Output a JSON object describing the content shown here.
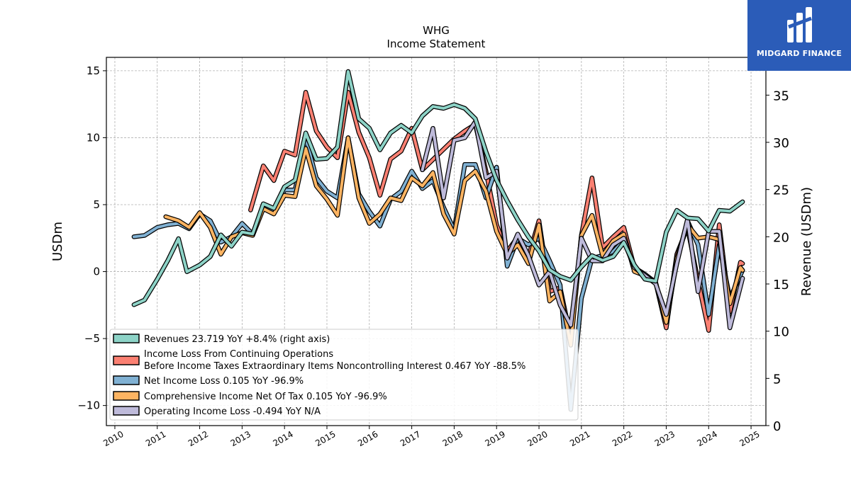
{
  "brand": {
    "name": "MIDGARD FINANCE",
    "bg": "#2b5cb8"
  },
  "chart_data": {
    "type": "line",
    "title": "WHG",
    "subtitle": "Income Statement",
    "ylabel": "USDm",
    "y2label": "Revenue (USDm)",
    "ylim": [
      -11.5,
      16
    ],
    "y2lim": [
      0,
      39
    ],
    "xlim": [
      2009.8,
      2025.35
    ],
    "yticks": [
      -10,
      -5,
      0,
      5,
      10,
      15
    ],
    "y2ticks": [
      0,
      5,
      10,
      15,
      20,
      25,
      30,
      35
    ],
    "xticks": [
      "2010",
      "2011",
      "2012",
      "2013",
      "2014",
      "2015",
      "2016",
      "2017",
      "2018",
      "2019",
      "2020",
      "2021",
      "2022",
      "2023",
      "2024",
      "2025"
    ],
    "grid": true,
    "legend_position": "lower-left",
    "series": [
      {
        "name": "Revenues  23.719 YoY +8.4% (right axis)",
        "axis": "right",
        "color": "#8dd3c7",
        "points": [
          [
            2010.45,
            12.8
          ],
          [
            2010.7,
            13.3
          ],
          [
            2011.0,
            15.5
          ],
          [
            2011.25,
            17.5
          ],
          [
            2011.5,
            19.8
          ],
          [
            2011.7,
            16.3
          ],
          [
            2012.0,
            17.0
          ],
          [
            2012.25,
            17.9
          ],
          [
            2012.5,
            20.2
          ],
          [
            2012.75,
            19.0
          ],
          [
            2013.0,
            20.5
          ],
          [
            2013.25,
            20.3
          ],
          [
            2013.5,
            23.5
          ],
          [
            2013.75,
            23.0
          ],
          [
            2014.0,
            25.3
          ],
          [
            2014.25,
            26.0
          ],
          [
            2014.5,
            31.0
          ],
          [
            2014.75,
            28.2
          ],
          [
            2015.0,
            28.3
          ],
          [
            2015.25,
            29.5
          ],
          [
            2015.5,
            37.5
          ],
          [
            2015.75,
            32.5
          ],
          [
            2016.0,
            31.5
          ],
          [
            2016.25,
            29.2
          ],
          [
            2016.5,
            31.0
          ],
          [
            2016.75,
            31.8
          ],
          [
            2017.0,
            31.0
          ],
          [
            2017.25,
            32.8
          ],
          [
            2017.5,
            33.8
          ],
          [
            2017.75,
            33.6
          ],
          [
            2018.0,
            34.0
          ],
          [
            2018.25,
            33.6
          ],
          [
            2018.5,
            32.5
          ],
          [
            2018.75,
            29.0
          ],
          [
            2019.0,
            26.0
          ],
          [
            2019.25,
            23.8
          ],
          [
            2019.5,
            21.8
          ],
          [
            2019.75,
            20.0
          ],
          [
            2020.0,
            18.5
          ],
          [
            2020.25,
            16.5
          ],
          [
            2020.5,
            15.8
          ],
          [
            2020.75,
            15.4
          ],
          [
            2021.0,
            16.8
          ],
          [
            2021.25,
            18.0
          ],
          [
            2021.5,
            17.5
          ],
          [
            2021.75,
            17.9
          ],
          [
            2022.0,
            19.4
          ],
          [
            2022.25,
            17.0
          ],
          [
            2022.5,
            15.5
          ],
          [
            2022.75,
            15.3
          ],
          [
            2023.0,
            20.5
          ],
          [
            2023.25,
            22.8
          ],
          [
            2023.5,
            22.0
          ],
          [
            2023.75,
            21.9
          ],
          [
            2024.0,
            20.6
          ],
          [
            2024.25,
            22.8
          ],
          [
            2024.5,
            22.7
          ],
          [
            2024.8,
            23.7
          ]
        ]
      },
      {
        "name": "Income Loss From Continuing Operations",
        "name_line2": "Before Income Taxes Extraordinary Items Noncontrolling Interest  0.467 YoY -88.5%",
        "axis": "left",
        "color": "#fb8072",
        "points": [
          [
            2013.2,
            4.6
          ],
          [
            2013.5,
            7.9
          ],
          [
            2013.75,
            6.8
          ],
          [
            2014.0,
            9.0
          ],
          [
            2014.25,
            8.7
          ],
          [
            2014.5,
            13.4
          ],
          [
            2014.75,
            10.5
          ],
          [
            2015.0,
            9.3
          ],
          [
            2015.25,
            8.5
          ],
          [
            2015.5,
            13.4
          ],
          [
            2015.75,
            10.4
          ],
          [
            2016.0,
            8.5
          ],
          [
            2016.25,
            5.7
          ],
          [
            2016.5,
            8.4
          ],
          [
            2016.75,
            9.0
          ],
          [
            2017.0,
            10.7
          ],
          [
            2017.25,
            7.6
          ],
          [
            2018.0,
            9.9
          ],
          [
            2018.25,
            10.5
          ],
          [
            2018.5,
            11.0
          ],
          [
            2018.75,
            7.5
          ],
          [
            2019.0,
            3.5
          ],
          [
            2019.25,
            1.5
          ],
          [
            2019.5,
            2.6
          ],
          [
            2019.75,
            1.1
          ],
          [
            2020.0,
            3.8
          ],
          [
            2020.25,
            -1.5
          ],
          [
            2020.5,
            -1.2
          ],
          [
            2020.75,
            -5.0
          ],
          [
            2021.0,
            2.7
          ],
          [
            2021.25,
            7.0
          ],
          [
            2021.5,
            1.8
          ],
          [
            2021.75,
            2.6
          ],
          [
            2022.0,
            3.3
          ],
          [
            2022.25,
            0.3
          ],
          [
            2022.5,
            -0.3
          ],
          [
            2022.75,
            -0.8
          ],
          [
            2023.0,
            -4.2
          ],
          [
            2023.25,
            1.3
          ],
          [
            2023.5,
            3.3
          ],
          [
            2023.75,
            -0.7
          ],
          [
            2024.0,
            -4.4
          ],
          [
            2024.25,
            3.5
          ],
          [
            2024.5,
            -3.0
          ],
          [
            2024.75,
            0.7
          ],
          [
            2024.8,
            0.6
          ]
        ]
      },
      {
        "name": "Net Income Loss  0.105 YoY -96.9%",
        "axis": "left",
        "color": "#80b1d3",
        "points": [
          [
            2010.45,
            2.6
          ],
          [
            2010.7,
            2.7
          ],
          [
            2011.0,
            3.3
          ],
          [
            2011.25,
            3.5
          ],
          [
            2011.5,
            3.6
          ],
          [
            2011.75,
            3.2
          ],
          [
            2012.0,
            4.3
          ],
          [
            2012.25,
            3.8
          ],
          [
            2012.5,
            2.2
          ],
          [
            2012.75,
            2.6
          ],
          [
            2013.0,
            3.6
          ],
          [
            2013.25,
            2.8
          ],
          [
            2013.5,
            4.8
          ],
          [
            2013.75,
            4.5
          ],
          [
            2014.0,
            6.1
          ],
          [
            2014.25,
            6.1
          ],
          [
            2014.5,
            10.0
          ],
          [
            2014.75,
            7.0
          ],
          [
            2015.0,
            6.0
          ],
          [
            2015.25,
            5.5
          ],
          [
            2015.5,
            10.0
          ],
          [
            2015.75,
            5.8
          ],
          [
            2016.0,
            4.5
          ],
          [
            2016.25,
            3.4
          ],
          [
            2016.5,
            5.4
          ],
          [
            2016.75,
            6.0
          ],
          [
            2017.0,
            7.5
          ],
          [
            2017.25,
            6.2
          ],
          [
            2017.5,
            6.8
          ],
          [
            2017.75,
            4.8
          ],
          [
            2018.0,
            3.1
          ],
          [
            2018.25,
            8.0
          ],
          [
            2018.5,
            8.0
          ],
          [
            2018.75,
            5.5
          ],
          [
            2019.0,
            7.8
          ],
          [
            2019.25,
            0.4
          ],
          [
            2019.5,
            2.5
          ],
          [
            2019.75,
            2.0
          ],
          [
            2020.0,
            2.5
          ],
          [
            2020.25,
            0.8
          ],
          [
            2020.5,
            -1.0
          ],
          [
            2020.75,
            -10.3
          ],
          [
            2021.0,
            -2.0
          ],
          [
            2021.25,
            1.0
          ],
          [
            2021.5,
            1.2
          ],
          [
            2021.75,
            1.5
          ],
          [
            2022.0,
            2.3
          ],
          [
            2022.25,
            0.3
          ],
          [
            2022.5,
            -0.2
          ],
          [
            2022.75,
            -0.8
          ],
          [
            2023.0,
            -3.8
          ],
          [
            2023.25,
            0.8
          ],
          [
            2023.5,
            3.8
          ],
          [
            2023.75,
            2.0
          ],
          [
            2024.0,
            -3.2
          ],
          [
            2024.25,
            2.0
          ],
          [
            2024.5,
            -2.0
          ],
          [
            2024.8,
            0.1
          ]
        ]
      },
      {
        "name": "Comprehensive Income Net Of Tax  0.105 YoY -96.9%",
        "axis": "left",
        "color": "#fdb462",
        "points": [
          [
            2011.2,
            4.1
          ],
          [
            2011.5,
            3.8
          ],
          [
            2011.75,
            3.3
          ],
          [
            2012.0,
            4.4
          ],
          [
            2012.25,
            3.3
          ],
          [
            2012.5,
            1.3
          ],
          [
            2012.75,
            2.6
          ],
          [
            2013.0,
            2.9
          ],
          [
            2013.25,
            2.7
          ],
          [
            2013.5,
            4.7
          ],
          [
            2013.75,
            4.3
          ],
          [
            2014.0,
            5.7
          ],
          [
            2014.25,
            5.6
          ],
          [
            2014.5,
            9.2
          ],
          [
            2014.75,
            6.4
          ],
          [
            2015.0,
            5.4
          ],
          [
            2015.25,
            4.2
          ],
          [
            2015.5,
            10.0
          ],
          [
            2015.75,
            5.5
          ],
          [
            2016.0,
            3.6
          ],
          [
            2016.25,
            4.3
          ],
          [
            2016.5,
            5.5
          ],
          [
            2016.75,
            5.3
          ],
          [
            2017.0,
            7.0
          ],
          [
            2017.25,
            6.4
          ],
          [
            2017.5,
            7.4
          ],
          [
            2017.75,
            4.3
          ],
          [
            2018.0,
            2.8
          ],
          [
            2018.25,
            6.8
          ],
          [
            2018.5,
            7.5
          ],
          [
            2018.75,
            6.0
          ],
          [
            2019.0,
            3.0
          ],
          [
            2019.25,
            1.3
          ],
          [
            2019.5,
            2.0
          ],
          [
            2019.75,
            0.6
          ],
          [
            2020.0,
            3.5
          ],
          [
            2020.25,
            -2.2
          ],
          [
            2020.5,
            -1.5
          ],
          [
            2020.75,
            -5.5
          ],
          [
            2021.0,
            2.7
          ],
          [
            2021.25,
            4.2
          ],
          [
            2021.5,
            1.2
          ],
          [
            2021.75,
            2.3
          ],
          [
            2022.0,
            2.8
          ],
          [
            2022.25,
            0.0
          ],
          [
            2022.5,
            -0.3
          ],
          [
            2022.75,
            -0.8
          ],
          [
            2023.0,
            -3.8
          ],
          [
            2023.25,
            1.0
          ],
          [
            2023.5,
            3.5
          ],
          [
            2023.75,
            2.5
          ],
          [
            2024.0,
            2.6
          ],
          [
            2024.25,
            2.4
          ],
          [
            2024.5,
            -2.4
          ],
          [
            2024.75,
            0.3
          ],
          [
            2024.8,
            0.1
          ]
        ]
      },
      {
        "name": "Operating Income Loss  -0.494 YoY N/A",
        "axis": "left",
        "color": "#bebada",
        "points": [
          [
            2017.25,
            7.6
          ],
          [
            2017.5,
            10.7
          ],
          [
            2017.75,
            5.5
          ],
          [
            2018.0,
            9.8
          ],
          [
            2018.25,
            10.0
          ],
          [
            2018.5,
            11.2
          ],
          [
            2018.75,
            7.0
          ],
          [
            2019.0,
            7.5
          ],
          [
            2019.25,
            1.0
          ],
          [
            2019.5,
            2.8
          ],
          [
            2019.75,
            1.2
          ],
          [
            2020.0,
            -1.0
          ],
          [
            2020.25,
            0.0
          ],
          [
            2020.5,
            -2.5
          ],
          [
            2020.75,
            -4.0
          ],
          [
            2021.0,
            2.5
          ],
          [
            2021.25,
            0.8
          ],
          [
            2021.5,
            0.8
          ],
          [
            2021.75,
            2.0
          ],
          [
            2022.0,
            2.5
          ],
          [
            2022.25,
            0.3
          ],
          [
            2022.5,
            -0.3
          ],
          [
            2022.75,
            -0.9
          ],
          [
            2023.0,
            -3.2
          ],
          [
            2023.25,
            0.6
          ],
          [
            2023.5,
            3.9
          ],
          [
            2023.75,
            -1.5
          ],
          [
            2024.0,
            3.0
          ],
          [
            2024.25,
            3.0
          ],
          [
            2024.5,
            -4.2
          ],
          [
            2024.8,
            -0.5
          ]
        ]
      }
    ]
  }
}
